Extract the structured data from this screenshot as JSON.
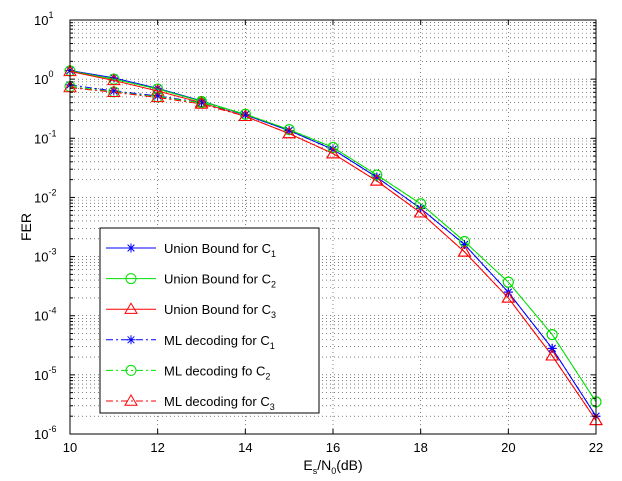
{
  "chart_data": {
    "type": "line",
    "y_scale": "log",
    "grid": true,
    "legend_position": "bottom-left",
    "title": "",
    "xlabel": {
      "base": "E",
      "base_sub": "s",
      "mid": "/N",
      "mid_sub": "0",
      "tail": "(dB)"
    },
    "ylabel": "FER",
    "xlim": [
      10,
      22
    ],
    "ylim": [
      1e-06,
      10
    ],
    "x_ticks": [
      "10",
      "12",
      "14",
      "16",
      "18",
      "20",
      "22"
    ],
    "y_ticks": [
      {
        "base": "10",
        "exp": "-6"
      },
      {
        "base": "10",
        "exp": "-5"
      },
      {
        "base": "10",
        "exp": "-4"
      },
      {
        "base": "10",
        "exp": "-3"
      },
      {
        "base": "10",
        "exp": "-2"
      },
      {
        "base": "10",
        "exp": "-1"
      },
      {
        "base": "10",
        "exp": "0"
      },
      {
        "base": "10",
        "exp": "1"
      }
    ],
    "x": [
      10,
      11,
      12,
      13,
      14,
      15,
      16,
      17,
      18,
      19,
      20,
      21,
      22
    ],
    "series": [
      {
        "name": "Union Bound for C",
        "name_sub": "1",
        "color": "#0000ff",
        "dash": "solid",
        "marker": "star",
        "values": [
          1.4,
          1.05,
          0.7,
          0.43,
          0.25,
          0.135,
          0.065,
          0.022,
          0.0065,
          0.0016,
          0.00025,
          2.8e-05,
          2e-06
        ]
      },
      {
        "name": "Union Bound for C",
        "name_sub": "2",
        "color": "#00e000",
        "dash": "solid",
        "marker": "circle",
        "values": [
          1.38,
          1.0,
          0.68,
          0.42,
          0.255,
          0.14,
          0.07,
          0.024,
          0.0078,
          0.0018,
          0.00037,
          4.8e-05,
          3.5e-06
        ]
      },
      {
        "name": "Union Bound for C",
        "name_sub": "3",
        "color": "#ff0000",
        "dash": "solid",
        "marker": "triangle",
        "values": [
          1.35,
          0.95,
          0.63,
          0.4,
          0.235,
          0.12,
          0.055,
          0.019,
          0.0055,
          0.0012,
          0.0002,
          2.1e-05,
          1.7e-06
        ]
      },
      {
        "name": "ML decoding for C",
        "name_sub": "1",
        "color": "#0000ff",
        "dash": "dashdot",
        "marker": "star",
        "values": [
          0.8,
          0.63,
          0.52,
          0.4,
          0.25,
          0.135,
          0.065,
          0.022,
          0.0065,
          0.0016,
          0.00025,
          2.8e-05,
          2e-06
        ]
      },
      {
        "name": "ML decoding fo C",
        "name_sub": "2",
        "color": "#00e000",
        "dash": "dashdot",
        "marker": "circle",
        "values": [
          0.75,
          0.61,
          0.5,
          0.4,
          0.255,
          0.14,
          0.07,
          0.024,
          0.0078,
          0.0018,
          0.00037,
          4.8e-05,
          3.5e-06
        ]
      },
      {
        "name": "ML decoding for C",
        "name_sub": "3",
        "color": "#ff0000",
        "dash": "dashdot",
        "marker": "triangle",
        "values": [
          0.72,
          0.6,
          0.49,
          0.38,
          0.235,
          0.12,
          0.055,
          0.019,
          0.0055,
          0.0012,
          0.0002,
          2.1e-05,
          1.7e-06
        ]
      }
    ]
  }
}
